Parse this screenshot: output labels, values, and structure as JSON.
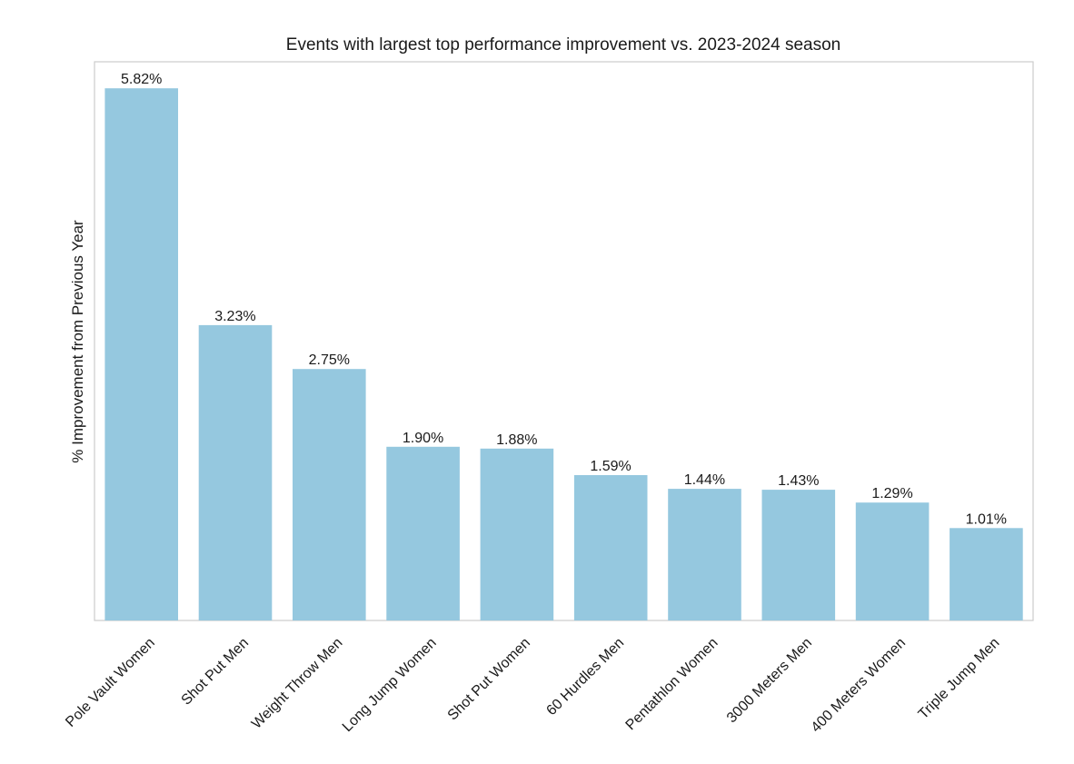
{
  "chart_data": {
    "type": "bar",
    "title": "Events with largest top performance improvement vs. 2023-2024 season",
    "xlabel": "",
    "ylabel": "% Improvement from Previous Year",
    "categories": [
      "Pole Vault Women",
      "Shot Put Men",
      "Weight Throw Men",
      "Long Jump Women",
      "Shot Put Women",
      "60 Hurdles Men",
      "Pentathlon Women",
      "3000 Meters Men",
      "400 Meters Women",
      "Triple Jump Men"
    ],
    "values": [
      5.82,
      3.23,
      2.75,
      1.9,
      1.88,
      1.59,
      1.44,
      1.43,
      1.29,
      1.01
    ],
    "data_labels": [
      "5.82%",
      "3.23%",
      "2.75%",
      "1.90%",
      "1.88%",
      "1.59%",
      "1.44%",
      "1.43%",
      "1.29%",
      "1.01%"
    ],
    "ylim": [
      0,
      6.11
    ],
    "y_ticks_visible": false,
    "grid": false,
    "legend": "none",
    "bar_color": "#95c8df",
    "axis_color": "#cccccc"
  }
}
